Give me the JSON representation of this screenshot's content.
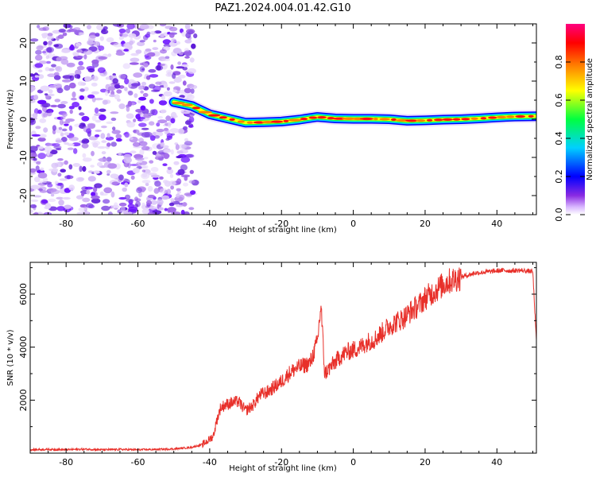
{
  "title": "PAZ1.2024.004.01.42.G10",
  "colors": {
    "snr_line": "#e8302a",
    "spectral_track": [
      "#0000ff",
      "#00c8ff",
      "#00ff40",
      "#ffff00",
      "#ff8000",
      "#ff0020"
    ],
    "scatter_purple": "#7b3fe4",
    "scatter_purple_light": "#d6c0f7"
  },
  "chart_data": [
    {
      "type": "heatmap",
      "xlabel": "Height of straight line (km)",
      "ylabel": "Frequency (Hz)",
      "xlim": [
        -90,
        51
      ],
      "ylim": [
        -25,
        25
      ],
      "xticks": [
        -80,
        -60,
        -40,
        -20,
        0,
        20,
        40
      ],
      "yticks": [
        -20,
        -10,
        0,
        10,
        20
      ],
      "colorbar": {
        "label": "Normalized spectral amplitude",
        "range": [
          0,
          1
        ],
        "ticks": [
          0.0,
          0.2,
          0.4,
          0.6,
          0.8
        ],
        "colormap": "rainbow (white-purple-blue-cyan-green-yellow-red-magenta)"
      },
      "noise_region_x": [
        -90,
        -44
      ],
      "track": {
        "x": [
          -50,
          -45,
          -40,
          -35,
          -30,
          -25,
          -20,
          -15,
          -10,
          -5,
          0,
          5,
          10,
          15,
          20,
          25,
          30,
          35,
          40,
          45,
          51
        ],
        "y": [
          4.5,
          3.5,
          1.3,
          0.2,
          -0.9,
          -0.8,
          -0.6,
          -0.1,
          0.6,
          0.2,
          0.1,
          0.1,
          0.0,
          -0.4,
          -0.3,
          -0.1,
          0.0,
          0.2,
          0.5,
          0.7,
          0.8
        ]
      }
    },
    {
      "type": "line",
      "xlabel": "Height of straight line (km)",
      "ylabel": "SNR (10 * v/v)",
      "xlim": [
        -90,
        51
      ],
      "ylim": [
        0,
        7200
      ],
      "xticks": [
        -80,
        -60,
        -40,
        -20,
        0,
        20,
        40
      ],
      "yticks": [
        2000,
        4000,
        6000
      ],
      "series": [
        {
          "x": [
            -90,
            -85,
            -80,
            -75,
            -70,
            -65,
            -60,
            -55,
            -50,
            -45,
            -42,
            -40,
            -39,
            -38,
            -37,
            -36,
            -34,
            -32,
            -30,
            -28,
            -26,
            -24,
            -22,
            -20,
            -18,
            -16,
            -14,
            -12,
            -10,
            -9,
            -8,
            -6,
            -4,
            -2,
            0,
            2,
            4,
            6,
            8,
            10,
            12,
            14,
            16,
            18,
            20,
            22,
            24,
            26,
            28,
            30,
            32,
            34,
            36,
            38,
            40,
            42,
            44,
            46,
            48,
            50,
            51
          ],
          "y": [
            130,
            140,
            130,
            150,
            130,
            140,
            130,
            140,
            160,
            220,
            330,
            520,
            650,
            1250,
            1700,
            1800,
            1900,
            1950,
            1600,
            1800,
            2200,
            2300,
            2500,
            2700,
            3000,
            3200,
            3300,
            3400,
            4200,
            5600,
            3000,
            3300,
            3600,
            3800,
            3900,
            4000,
            4200,
            4300,
            4550,
            4800,
            4950,
            5100,
            5350,
            5550,
            5850,
            6050,
            6250,
            6450,
            6550,
            6650,
            6720,
            6800,
            6820,
            6850,
            6880,
            6900,
            6880,
            6900,
            6880,
            6850,
            4200
          ]
        }
      ]
    }
  ]
}
